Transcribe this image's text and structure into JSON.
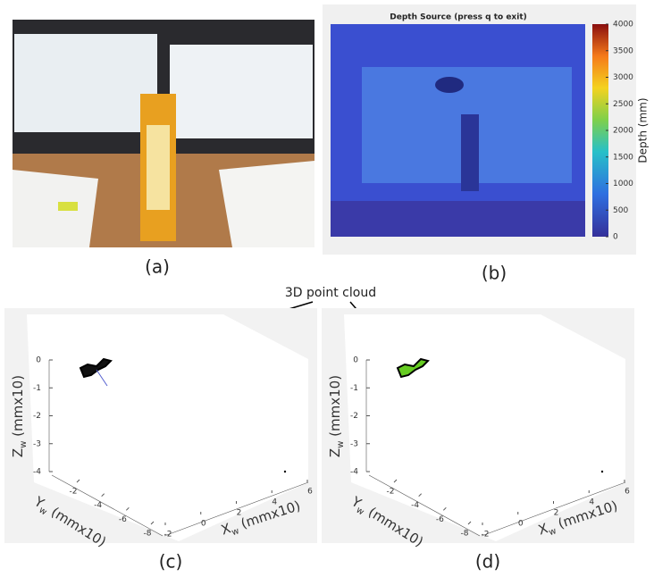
{
  "figure": {
    "photo": {
      "panel_label": "(a)"
    },
    "depth": {
      "title": "Depth Source (press q to exit)",
      "panel_label": "(b)",
      "colorbar": {
        "label": "Depth (mm)",
        "ticks": [
          0,
          500,
          1000,
          1500,
          2000,
          2500,
          3000,
          3500,
          4000
        ]
      }
    },
    "annotation": "3D point cloud",
    "plots": [
      {
        "panel_label": "(c)",
        "cloud_color": "#111111",
        "zlabel": {
          "main": "Z",
          "sub": "w",
          "unit": " (mmx10)"
        },
        "ylabel": {
          "main": "Y",
          "sub": "w",
          "unit": " (mmx10)"
        },
        "xlabel": {
          "main": "X",
          "sub": "w",
          "unit": " (mmx10)"
        },
        "zticks": [
          0,
          -1,
          -2,
          -3,
          -4
        ],
        "yticks": [
          -2,
          -4,
          -6,
          -8
        ],
        "xticks": [
          -2,
          0,
          2,
          4,
          6
        ]
      },
      {
        "panel_label": "(d)",
        "cloud_color": "#66cc22",
        "zlabel": {
          "main": "Z",
          "sub": "w",
          "unit": " (mmx10)"
        },
        "ylabel": {
          "main": "Y",
          "sub": "w",
          "unit": " (mmx10)"
        },
        "xlabel": {
          "main": "X",
          "sub": "w",
          "unit": " (mmx10)"
        },
        "zticks": [
          0,
          -1,
          -2,
          -3,
          -4
        ],
        "yticks": [
          -2,
          -4,
          -6,
          -8
        ],
        "xticks": [
          -2,
          0,
          2,
          4,
          6
        ]
      }
    ]
  }
}
